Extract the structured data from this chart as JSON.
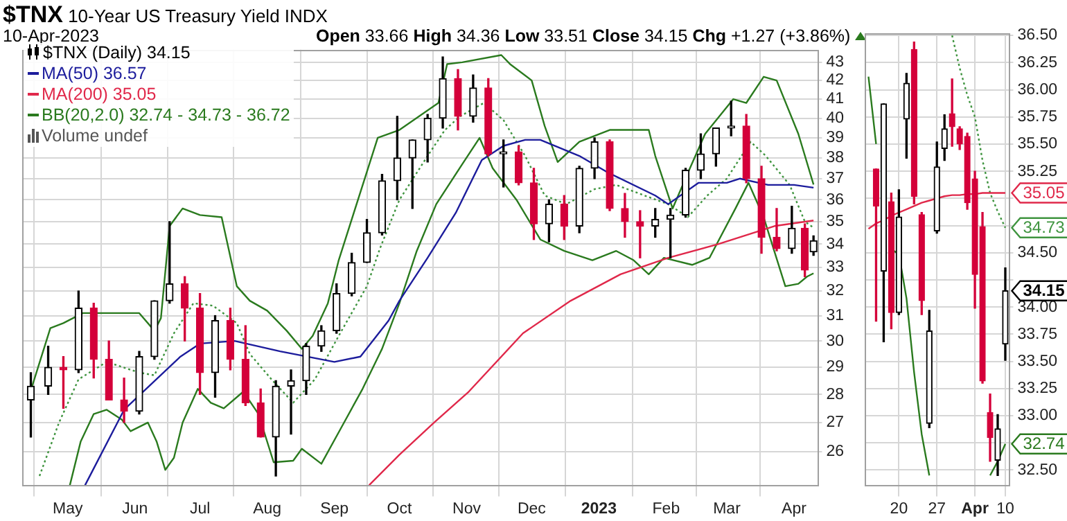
{
  "chart_data": [
    {
      "type": "candlestick",
      "title": "$TNX 10-Year US Treasury Yield INDX",
      "subtitle": "10-Apr-2023",
      "annotations": [
        "Open 33.66 High 34.36 Low 33.51 Close 34.15 Chg +1.27 (+3.86%)",
        "Volume undef"
      ],
      "log": "y",
      "grid": true,
      "legend": "top left",
      "marker": "none",
      "xlim": [
        "2022-04-10",
        "2023-04-12"
      ],
      "xticks": [
        {
          "value": "2022-05-01",
          "label": "May"
        },
        {
          "value": "2022-06-01",
          "label": "Jun"
        },
        {
          "value": "2022-07-01",
          "label": "Jul"
        },
        {
          "value": "2022-08-01",
          "label": "Aug"
        },
        {
          "value": "2022-09-01",
          "label": "Sep"
        },
        {
          "value": "2022-10-01",
          "label": "Oct"
        },
        {
          "value": "2022-11-01",
          "label": "Nov"
        },
        {
          "value": "2022-12-01",
          "label": "Dec"
        },
        {
          "value": "2023-01-01",
          "label": "2023"
        },
        {
          "value": "2023-02-01",
          "label": "Feb"
        },
        {
          "value": "2023-03-01",
          "label": "Mar"
        },
        {
          "value": "2023-04-01",
          "label": "Apr"
        }
      ],
      "ylim": [
        24.9,
        43.7
      ],
      "yticks": [
        26,
        27,
        28,
        29,
        30,
        31,
        32,
        33,
        34,
        35,
        36,
        37,
        38,
        39,
        40,
        41,
        42,
        43
      ],
      "series": [
        {
          "type": "candlestick",
          "name": "$TNX (Daily) 34.15",
          "x": [
            "2022-04-14",
            "2022-04-22",
            "2022-04-29",
            "2022-05-06",
            "2022-05-13",
            "2022-05-20",
            "2022-05-27",
            "2022-06-03",
            "2022-06-10",
            "2022-06-17",
            "2022-06-24",
            "2022-07-01",
            "2022-07-08",
            "2022-07-15",
            "2022-07-22",
            "2022-07-29",
            "2022-08-05",
            "2022-08-12",
            "2022-08-19",
            "2022-08-26",
            "2022-09-02",
            "2022-09-09",
            "2022-09-16",
            "2022-09-23",
            "2022-09-30",
            "2022-10-07",
            "2022-10-14",
            "2022-10-21",
            "2022-10-28",
            "2022-11-04",
            "2022-11-11",
            "2022-11-18",
            "2022-11-25",
            "2022-12-02",
            "2022-12-09",
            "2022-12-16",
            "2022-12-23",
            "2022-12-30",
            "2023-01-06",
            "2023-01-13",
            "2023-01-20",
            "2023-01-27",
            "2023-02-03",
            "2023-02-10",
            "2023-02-17",
            "2023-02-24",
            "2023-03-03",
            "2023-03-10",
            "2023-03-17",
            "2023-03-24",
            "2023-03-31",
            "2023-04-06",
            "2023-04-10"
          ],
          "ohlc": [
            [
              27.8,
              28.8,
              26.5,
              28.3
            ],
            [
              28.3,
              29.8,
              28.0,
              29.0
            ],
            [
              29.0,
              29.4,
              27.5,
              28.9
            ],
            [
              28.9,
              32.0,
              28.8,
              31.3
            ],
            [
              31.3,
              31.5,
              28.6,
              29.3
            ],
            [
              29.3,
              30.0,
              27.8,
              27.8
            ],
            [
              27.8,
              28.6,
              27.0,
              27.4
            ],
            [
              27.4,
              29.6,
              27.3,
              29.4
            ],
            [
              29.4,
              31.6,
              29.3,
              31.6
            ],
            [
              31.6,
              35.0,
              31.5,
              32.3
            ],
            [
              32.3,
              32.6,
              30.0,
              31.3
            ],
            [
              31.3,
              31.9,
              28.0,
              28.8
            ],
            [
              28.8,
              31.0,
              27.9,
              30.8
            ],
            [
              30.8,
              31.3,
              28.9,
              29.3
            ],
            [
              29.3,
              30.6,
              27.6,
              27.7
            ],
            [
              27.7,
              28.2,
              26.5,
              26.5
            ],
            [
              26.5,
              28.5,
              25.2,
              28.3
            ],
            [
              28.3,
              28.9,
              26.6,
              28.5
            ],
            [
              28.5,
              29.9,
              28.0,
              29.8
            ],
            [
              29.8,
              30.6,
              29.6,
              30.4
            ],
            [
              30.4,
              32.3,
              30.3,
              31.9
            ],
            [
              31.9,
              33.6,
              31.8,
              33.2
            ],
            [
              33.2,
              35.1,
              33.2,
              34.5
            ],
            [
              34.5,
              37.2,
              34.4,
              36.9
            ],
            [
              36.9,
              40.1,
              36.0,
              38.0
            ],
            [
              38.0,
              38.9,
              35.6,
              38.9
            ],
            [
              38.9,
              40.2,
              37.8,
              40.0
            ],
            [
              40.0,
              43.3,
              39.5,
              42.1
            ],
            [
              42.1,
              42.6,
              39.4,
              40.1
            ],
            [
              40.1,
              42.3,
              39.8,
              41.6
            ],
            [
              41.6,
              42.1,
              38.1,
              38.2
            ],
            [
              38.2,
              38.9,
              36.6,
              38.3
            ],
            [
              38.3,
              38.6,
              36.7,
              36.8
            ],
            [
              36.8,
              37.5,
              34.2,
              34.9
            ],
            [
              34.9,
              36.0,
              34.1,
              35.8
            ],
            [
              35.8,
              36.2,
              34.2,
              34.8
            ],
            [
              34.8,
              37.6,
              34.5,
              37.5
            ],
            [
              37.5,
              39.0,
              37.0,
              38.8
            ],
            [
              38.8,
              38.9,
              35.5,
              35.6
            ],
            [
              35.6,
              36.3,
              34.3,
              35.0
            ],
            [
              35.0,
              35.5,
              33.4,
              34.8
            ],
            [
              34.8,
              35.6,
              34.3,
              35.1
            ],
            [
              35.1,
              35.6,
              33.4,
              35.3
            ],
            [
              35.3,
              37.5,
              35.2,
              37.4
            ],
            [
              37.4,
              39.2,
              37.0,
              38.2
            ],
            [
              38.2,
              39.5,
              37.6,
              39.5
            ],
            [
              39.5,
              40.9,
              39.1,
              39.6
            ],
            [
              39.6,
              40.2,
              36.8,
              37.0
            ],
            [
              37.0,
              37.6,
              33.6,
              34.3
            ],
            [
              34.3,
              35.6,
              33.7,
              33.8
            ],
            [
              33.8,
              35.7,
              33.6,
              34.7
            ],
            [
              34.7,
              34.9,
              32.6,
              32.88
            ],
            [
              33.66,
              34.36,
              33.51,
              34.15
            ]
          ],
          "colors": [
            "#000000",
            "#000000",
            "#d4003a",
            "#000000",
            "#d4003a",
            "#d4003a",
            "#d4003a",
            "#000000",
            "#000000",
            "#000000",
            "#d4003a",
            "#d4003a",
            "#000000",
            "#d4003a",
            "#d4003a",
            "#d4003a",
            "#000000",
            "#000000",
            "#000000",
            "#000000",
            "#000000",
            "#000000",
            "#000000",
            "#000000",
            "#000000",
            "#000000",
            "#000000",
            "#000000",
            "#d4003a",
            "#000000",
            "#d4003a",
            "#000000",
            "#d4003a",
            "#d4003a",
            "#000000",
            "#d4003a",
            "#000000",
            "#000000",
            "#d4003a",
            "#d4003a",
            "#d4003a",
            "#000000",
            "#000000",
            "#000000",
            "#000000",
            "#000000",
            "#000000",
            "#d4003a",
            "#d4003a",
            "#d4003a",
            "#000000",
            "#d4003a",
            "#000000"
          ]
        },
        {
          "type": "line",
          "name": "MA(50) 36.57",
          "color": "#1c1c9c",
          "x": [
            "2022-05-09",
            "2022-05-27",
            "2022-06-22",
            "2022-07-01",
            "2022-07-17",
            "2022-08-07",
            "2022-09-01",
            "2022-09-13",
            "2022-09-26",
            "2022-10-01",
            "2022-10-14",
            "2022-10-27",
            "2022-11-08",
            "2022-11-18",
            "2022-11-28",
            "2022-12-05",
            "2022-12-23",
            "2023-01-05",
            "2023-01-27",
            "2023-02-02",
            "2023-02-16",
            "2023-03-01",
            "2023-03-07",
            "2023-03-20",
            "2023-04-01",
            "2023-04-10"
          ],
          "values": [
            24.9,
            27.45,
            29.4,
            29.9,
            30.0,
            29.6,
            29.2,
            29.4,
            30.8,
            31.6,
            33.4,
            35.4,
            37.9,
            38.6,
            38.9,
            38.9,
            38.1,
            37.3,
            36.2,
            35.8,
            36.8,
            36.8,
            37.0,
            36.7,
            36.7,
            36.57
          ]
        },
        {
          "type": "line",
          "name": "MA(200) 35.05",
          "color": "#e0284a",
          "x": [
            "2022-09-17",
            "2022-10-01",
            "2022-10-17",
            "2022-11-02",
            "2022-11-27",
            "2022-12-19",
            "2023-01-11",
            "2023-02-02",
            "2023-02-25",
            "2023-03-23",
            "2023-04-10"
          ],
          "values": [
            24.9,
            25.9,
            27.0,
            28.1,
            30.3,
            31.6,
            32.7,
            33.4,
            34.0,
            34.8,
            35.05
          ]
        },
        {
          "type": "line",
          "name": "BB(20,2.0) 32.74 - 34.73 - 36.72",
          "color": "#2a7a1e",
          "x": [
            "2022-04-13",
            "2022-04-23",
            "2022-04-29",
            "2022-05-08",
            "2022-05-27",
            "2022-06-03",
            "2022-06-10",
            "2022-06-13",
            "2022-06-17",
            "2022-06-23",
            "2022-07-01",
            "2022-07-11",
            "2022-07-18",
            "2022-07-24",
            "2022-08-01",
            "2022-08-10",
            "2022-08-17",
            "2022-08-22",
            "2022-08-29",
            "2022-09-03",
            "2022-09-21",
            "2022-10-01",
            "2022-10-19",
            "2022-10-23",
            "2022-10-30",
            "2022-11-17",
            "2022-11-21",
            "2022-12-01",
            "2022-12-07",
            "2022-12-13",
            "2022-12-23",
            "2023-01-06",
            "2023-01-24",
            "2023-01-27",
            "2023-02-04",
            "2023-02-12",
            "2023-02-19",
            "2023-03-04",
            "2023-03-10",
            "2023-03-18",
            "2023-03-24",
            "2023-04-03",
            "2023-04-10"
          ],
          "values": [
            27.9,
            30.5,
            30.7,
            31.1,
            31.1,
            31.1,
            30.4,
            30.9,
            34.8,
            35.6,
            35.3,
            35.2,
            32.2,
            31.6,
            31.2,
            30.4,
            29.7,
            30.2,
            31.5,
            33.3,
            39.0,
            39.4,
            40.8,
            42.9,
            43.0,
            43.4,
            42.9,
            42.0,
            39.6,
            37.8,
            38.8,
            39.4,
            39.4,
            38.1,
            35.6,
            37.5,
            39.2,
            41.0,
            40.8,
            42.2,
            42.0,
            39.2,
            36.72
          ]
        },
        {
          "type": "line",
          "color": "#3f943f",
          "line_style": "dotted",
          "x": [
            "2022-04-18",
            "2022-04-27",
            "2022-05-06",
            "2022-05-19",
            "2022-06-03",
            "2022-06-10",
            "2022-06-19",
            "2022-06-28",
            "2022-07-07",
            "2022-07-18",
            "2022-07-24",
            "2022-08-03",
            "2022-08-13",
            "2022-08-23",
            "2022-09-03",
            "2022-09-16",
            "2022-09-22",
            "2022-10-01",
            "2022-10-14",
            "2022-10-22",
            "2022-10-29",
            "2022-11-09",
            "2022-11-18",
            "2022-11-28",
            "2022-12-07",
            "2022-12-17",
            "2022-12-30",
            "2023-01-09",
            "2023-01-22",
            "2023-02-02",
            "2023-02-11",
            "2023-02-20",
            "2023-03-01",
            "2023-03-12",
            "2023-03-19",
            "2023-03-30",
            "2023-04-06",
            "2023-04-10"
          ],
          "values": [
            25.2,
            27.0,
            28.55,
            29.2,
            28.8,
            28.7,
            30.3,
            31.5,
            31.4,
            30.7,
            29.5,
            28.55,
            27.7,
            28.55,
            30.2,
            32.2,
            33.8,
            36.0,
            38.1,
            39.4,
            40.1,
            40.8,
            39.9,
            38.1,
            36.2,
            35.8,
            36.5,
            36.7,
            36.2,
            35.8,
            35.2,
            36.2,
            37.0,
            38.8,
            38.1,
            36.7,
            35.0,
            34.73
          ]
        },
        {
          "type": "line",
          "color": "#2a7a1e",
          "x": [
            "2022-05-02",
            "2022-05-07",
            "2022-05-13",
            "2022-05-19",
            "2022-05-26",
            "2022-05-30",
            "2022-06-07",
            "2022-06-11",
            "2022-06-15",
            "2022-06-19",
            "2022-06-23",
            "2022-06-30",
            "2022-07-06",
            "2022-07-12",
            "2022-07-21",
            "2022-07-28",
            "2022-08-04",
            "2022-08-13",
            "2022-08-17",
            "2022-08-26",
            "2022-09-04",
            "2022-09-14",
            "2022-09-23",
            "2022-10-01",
            "2022-10-09",
            "2022-10-18",
            "2022-10-30",
            "2022-11-07",
            "2022-11-13",
            "2022-11-24",
            "2022-12-05",
            "2022-12-16",
            "2022-12-29",
            "2023-01-09",
            "2023-01-17",
            "2023-01-24",
            "2023-01-31",
            "2023-02-13",
            "2023-02-21",
            "2023-03-05",
            "2023-03-11",
            "2023-03-18",
            "2023-03-28",
            "2023-04-03",
            "2023-04-07",
            "2023-04-10"
          ],
          "values": [
            24.9,
            26.35,
            27.3,
            27.45,
            27.1,
            26.7,
            27.0,
            26.35,
            25.4,
            25.8,
            27.0,
            28.2,
            27.7,
            27.5,
            28.1,
            27.3,
            25.65,
            25.7,
            26.1,
            25.6,
            26.8,
            28.2,
            29.7,
            31.5,
            33.7,
            35.8,
            37.7,
            39.0,
            37.5,
            36.0,
            34.2,
            33.7,
            33.3,
            33.7,
            33.3,
            32.7,
            33.4,
            33.1,
            33.4,
            35.6,
            36.8,
            35.2,
            32.2,
            32.3,
            32.6,
            32.74
          ]
        }
      ]
    },
    {
      "type": "candlestick",
      "grid": true,
      "marker": "none",
      "categories": [
        null,
        null,
        null,
        null,
        "20",
        null,
        null,
        null,
        null,
        "27",
        null,
        null,
        null,
        null,
        "Apr",
        null,
        null,
        null,
        "10"
      ],
      "ylim": [
        32.36,
        36.52
      ],
      "yticks": [
        {
          "value": 32.5,
          "label": "32.50"
        },
        {
          "value": 32.75,
          "label": null
        },
        {
          "value": 33,
          "label": "33.00"
        },
        {
          "value": 33.25,
          "label": "33.25"
        },
        {
          "value": 33.5,
          "label": "33.50"
        },
        {
          "value": 33.75,
          "label": "33.75"
        },
        {
          "value": 34,
          "label": "34.00"
        },
        {
          "value": 34.25,
          "label": null
        },
        {
          "value": 34.5,
          "label": "34.50"
        },
        {
          "value": 34.75,
          "label": null
        },
        {
          "value": 35,
          "label": null
        },
        {
          "value": 35.25,
          "label": "35.25"
        },
        {
          "value": 35.5,
          "label": "35.50"
        },
        {
          "value": 35.75,
          "label": "35.75"
        },
        {
          "value": 36,
          "label": "36.00"
        },
        {
          "value": 36.25,
          "label": "36.25"
        },
        {
          "value": 36.5,
          "label": "36.50"
        }
      ],
      "annotations": [
        {
          "text": "35.05",
          "x": "10",
          "y": 35.05
        },
        {
          "text": "34.73",
          "x": "10",
          "y": 34.73
        },
        {
          "text": "34.15",
          "x": "10",
          "y": 34.15
        },
        {
          "text": "32.74",
          "x": "10",
          "y": 32.74
        }
      ],
      "series": [
        {
          "type": "candlestick",
          "ohlc": [
            null,
            [
              35.27,
              35.27,
              33.87,
              34.93
            ],
            [
              34.33,
              35.87,
              33.68,
              35.87
            ],
            [
              34.97,
              35.05,
              33.8,
              33.95
            ],
            [
              33.95,
              35.08,
              33.93,
              34.83
            ],
            [
              35.73,
              36.15,
              35.37,
              36.06
            ],
            [
              36.37,
              36.44,
              34.95,
              35.02
            ],
            [
              34.85,
              34.87,
              33.93,
              34.06
            ],
            [
              32.93,
              33.97,
              32.89,
              33.78
            ],
            [
              34.7,
              35.52,
              34.68,
              35.29
            ],
            [
              35.46,
              35.77,
              35.35,
              35.64
            ],
            [
              35.78,
              36.1,
              35.48,
              35.66
            ],
            [
              35.64,
              35.66,
              35.45,
              35.5
            ],
            [
              35.57,
              35.6,
              34.9,
              34.96
            ],
            [
              35.18,
              35.25,
              33.99,
              34.3
            ],
            [
              34.74,
              34.87,
              33.3,
              33.32
            ],
            [
              33.03,
              33.2,
              32.58,
              32.8
            ],
            [
              32.59,
              33.01,
              32.45,
              32.88
            ],
            [
              33.66,
              34.36,
              33.51,
              34.15
            ]
          ],
          "colors": [
            "#000000",
            "#d4003a",
            "#000000",
            "#d4003a",
            "#000000",
            "#000000",
            "#d4003a",
            "#d4003a",
            "#000000",
            "#000000",
            "#000000",
            "#d4003a",
            "#d4003a",
            "#d4003a",
            "#d4003a",
            "#d4003a",
            "#d4003a",
            "#000000",
            "#000000"
          ]
        },
        {
          "type": "line",
          "color": "#e0284a",
          "values": [
            34.72,
            34.77,
            34.8,
            34.84,
            34.87,
            34.9,
            34.93,
            34.96,
            34.98,
            35.0,
            35.02,
            35.03,
            35.03,
            35.04,
            35.04,
            35.05,
            35.05,
            35.05,
            35.05
          ]
        },
        {
          "type": "line",
          "color": "#3f943f",
          "line_style": "dotted",
          "values": [
            null,
            null,
            null,
            null,
            null,
            null,
            null,
            null,
            null,
            null,
            null,
            36.5,
            36.2,
            35.95,
            35.75,
            35.35,
            35.05,
            34.88,
            34.73
          ]
        },
        {
          "type": "line",
          "color": "#2a7a1e",
          "values": [
            36.12,
            35.5,
            null,
            34.53,
            34.49,
            34.08,
            33.4,
            32.83,
            32.45,
            null,
            null,
            null,
            null,
            null,
            null,
            null,
            32.45,
            32.58,
            32.74
          ]
        }
      ]
    }
  ]
}
